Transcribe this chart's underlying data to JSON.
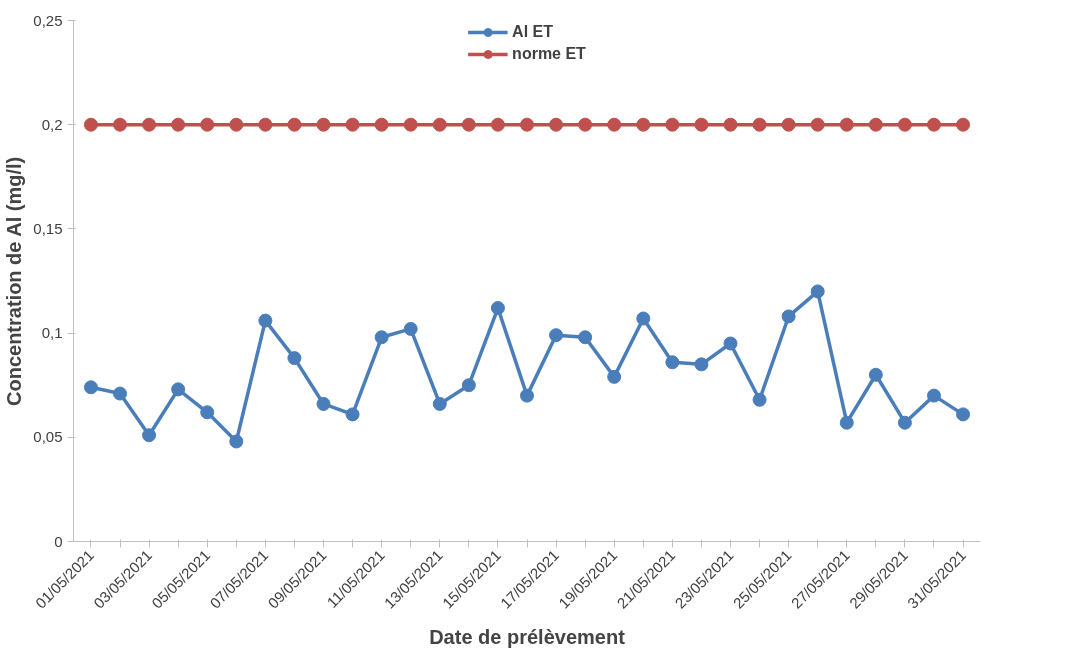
{
  "chart_data": {
    "type": "line",
    "xlabel": "Date de prélèvement",
    "ylabel": "Concentration de Al (mg/l)",
    "categories": [
      "01/05/2021",
      null,
      "03/05/2021",
      null,
      "05/05/2021",
      null,
      "07/05/2021",
      null,
      "09/05/2021",
      null,
      "11/05/2021",
      null,
      "13/05/2021",
      null,
      "15/05/2021",
      null,
      "17/05/2021",
      null,
      "19/05/2021",
      null,
      "21/05/2021",
      null,
      "23/05/2021",
      null,
      "25/05/2021",
      null,
      "27/05/2021",
      null,
      "29/05/2021",
      null,
      "31/05/2021"
    ],
    "series": [
      {
        "name": "Al ET",
        "color": "#4a7ebb",
        "values": [
          0.074,
          0.071,
          0.051,
          0.073,
          0.062,
          0.048,
          0.106,
          0.088,
          0.066,
          0.061,
          0.098,
          0.102,
          0.066,
          0.075,
          0.112,
          0.07,
          0.099,
          0.098,
          0.079,
          0.107,
          0.086,
          0.085,
          0.095,
          0.068,
          0.108,
          0.12,
          0.057,
          0.08,
          0.057,
          0.07,
          0.061
        ]
      },
      {
        "name": "norme ET",
        "color": "#c0504d",
        "values": [
          0.2,
          0.2,
          0.2,
          0.2,
          0.2,
          0.2,
          0.2,
          0.2,
          0.2,
          0.2,
          0.2,
          0.2,
          0.2,
          0.2,
          0.2,
          0.2,
          0.2,
          0.2,
          0.2,
          0.2,
          0.2,
          0.2,
          0.2,
          0.2,
          0.2,
          0.2,
          0.2,
          0.2,
          0.2,
          0.2,
          0.2
        ]
      }
    ],
    "ylim": [
      0,
      0.25
    ],
    "yticks": [
      0,
      {
        "value": 0.05,
        "label": "0,05"
      },
      {
        "value": 0.1,
        "label": "0,1"
      },
      {
        "value": 0.15,
        "label": "0,15"
      },
      {
        "value": 0.2,
        "label": "0,2"
      },
      {
        "value": 0.25,
        "label": "0,25"
      }
    ],
    "grid": false,
    "legend": "top",
    "marker": "circle",
    "line_style": "solid"
  }
}
